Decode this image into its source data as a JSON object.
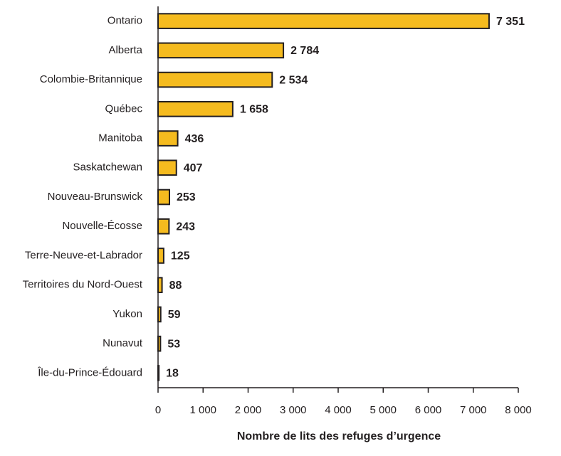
{
  "chart_data": {
    "type": "bar",
    "orientation": "horizontal",
    "x_label": "Nombre de lits des refuges d’urgence",
    "categories": [
      "Ontario",
      "Alberta",
      "Colombie-Britannique",
      "Québec",
      "Manitoba",
      "Saskatchewan",
      "Nouveau-Brunswick",
      "Nouvelle-Écosse",
      "Terre-Neuve-et-Labrador",
      "Territoires du Nord-Ouest",
      "Yukon",
      "Nunavut",
      "Île-du-Prince-Édouard"
    ],
    "values": [
      7351,
      2784,
      2534,
      1658,
      436,
      407,
      253,
      243,
      125,
      88,
      59,
      53,
      18
    ],
    "value_labels": [
      "7 351",
      "2 784",
      "2 534",
      "1 658",
      "436",
      "407",
      "253",
      "243",
      "125",
      "88",
      "59",
      "53",
      "18"
    ],
    "color": "#f5bb1f",
    "xlim": [
      0,
      8000
    ],
    "xticks": [
      0,
      {
        "value": 1000,
        "label": "1 000"
      },
      {
        "value": 2000,
        "label": "2 000"
      },
      {
        "value": 3000,
        "label": "3 000"
      },
      {
        "value": 4000,
        "label": "4 000"
      },
      {
        "value": 5000,
        "label": "5 000"
      },
      {
        "value": 6000,
        "label": "6 000"
      },
      {
        "value": 7000,
        "label": "7 000"
      },
      {
        "value": 8000,
        "label": "8 000"
      }
    ]
  }
}
